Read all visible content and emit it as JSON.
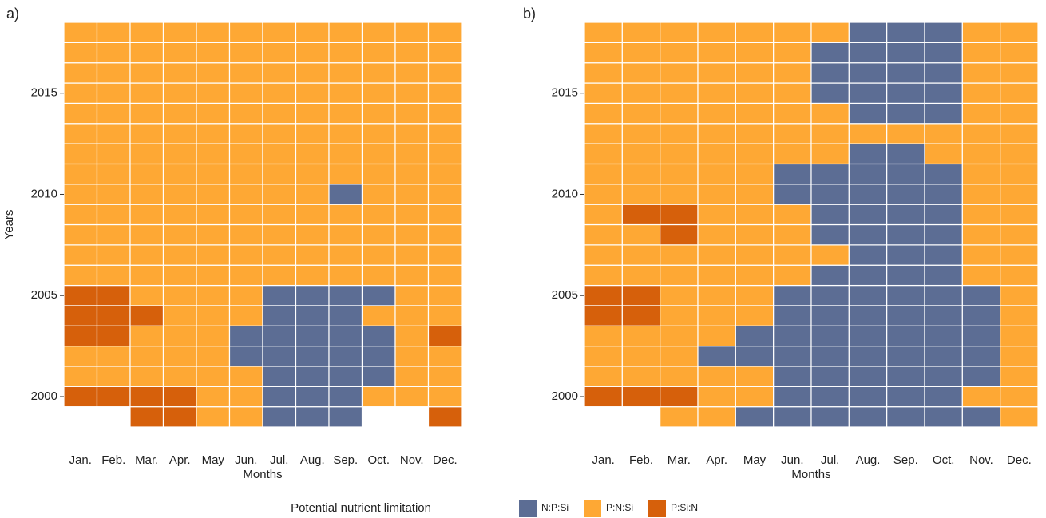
{
  "chart_data": [
    {
      "type": "heatmap",
      "panel_label": "a)",
      "x_label": "Months",
      "y_label": "Years",
      "categories": [
        "Jan.",
        "Feb.",
        "Mar.",
        "Apr.",
        "May",
        "Jun.",
        "Jul.",
        "Aug.",
        "Sep.",
        "Oct.",
        "Nov.",
        "Dec."
      ],
      "y": [
        1999,
        2000,
        2001,
        2002,
        2003,
        2004,
        2005,
        2006,
        2007,
        2008,
        2009,
        2010,
        2011,
        2012,
        2013,
        2014,
        2015,
        2016,
        2017,
        2018
      ],
      "ylim": [
        1998.5,
        2018.5
      ],
      "yticks": [
        2000,
        2005,
        2010,
        2015
      ],
      "values": [
        [
          null,
          null,
          "P:Si:N",
          "P:Si:N",
          "P:N:Si",
          "P:N:Si",
          "N:P:Si",
          "N:P:Si",
          "N:P:Si",
          null,
          null,
          "P:Si:N"
        ],
        [
          "P:Si:N",
          "P:Si:N",
          "P:Si:N",
          "P:Si:N",
          "P:N:Si",
          "P:N:Si",
          "N:P:Si",
          "N:P:Si",
          "N:P:Si",
          "P:N:Si",
          "P:N:Si",
          "P:N:Si"
        ],
        [
          "P:N:Si",
          "P:N:Si",
          "P:N:Si",
          "P:N:Si",
          "P:N:Si",
          "P:N:Si",
          "N:P:Si",
          "N:P:Si",
          "N:P:Si",
          "N:P:Si",
          "P:N:Si",
          "P:N:Si"
        ],
        [
          "P:N:Si",
          "P:N:Si",
          "P:N:Si",
          "P:N:Si",
          "P:N:Si",
          "N:P:Si",
          "N:P:Si",
          "N:P:Si",
          "N:P:Si",
          "N:P:Si",
          "P:N:Si",
          "P:N:Si"
        ],
        [
          "P:Si:N",
          "P:Si:N",
          "P:N:Si",
          "P:N:Si",
          "P:N:Si",
          "N:P:Si",
          "N:P:Si",
          "N:P:Si",
          "N:P:Si",
          "N:P:Si",
          "P:N:Si",
          "P:Si:N"
        ],
        [
          "P:Si:N",
          "P:Si:N",
          "P:Si:N",
          "P:N:Si",
          "P:N:Si",
          "P:N:Si",
          "N:P:Si",
          "N:P:Si",
          "N:P:Si",
          "P:N:Si",
          "P:N:Si",
          "P:N:Si"
        ],
        [
          "P:Si:N",
          "P:Si:N",
          "P:N:Si",
          "P:N:Si",
          "P:N:Si",
          "P:N:Si",
          "N:P:Si",
          "N:P:Si",
          "N:P:Si",
          "N:P:Si",
          "P:N:Si",
          "P:N:Si"
        ],
        [
          "P:N:Si",
          "P:N:Si",
          "P:N:Si",
          "P:N:Si",
          "P:N:Si",
          "P:N:Si",
          "P:N:Si",
          "P:N:Si",
          "P:N:Si",
          "P:N:Si",
          "P:N:Si",
          "P:N:Si"
        ],
        [
          "P:N:Si",
          "P:N:Si",
          "P:N:Si",
          "P:N:Si",
          "P:N:Si",
          "P:N:Si",
          "P:N:Si",
          "P:N:Si",
          "P:N:Si",
          "P:N:Si",
          "P:N:Si",
          "P:N:Si"
        ],
        [
          "P:N:Si",
          "P:N:Si",
          "P:N:Si",
          "P:N:Si",
          "P:N:Si",
          "P:N:Si",
          "P:N:Si",
          "P:N:Si",
          "P:N:Si",
          "P:N:Si",
          "P:N:Si",
          "P:N:Si"
        ],
        [
          "P:N:Si",
          "P:N:Si",
          "P:N:Si",
          "P:N:Si",
          "P:N:Si",
          "P:N:Si",
          "P:N:Si",
          "P:N:Si",
          "P:N:Si",
          "P:N:Si",
          "P:N:Si",
          "P:N:Si"
        ],
        [
          "P:N:Si",
          "P:N:Si",
          "P:N:Si",
          "P:N:Si",
          "P:N:Si",
          "P:N:Si",
          "P:N:Si",
          "P:N:Si",
          "N:P:Si",
          "P:N:Si",
          "P:N:Si",
          "P:N:Si"
        ],
        [
          "P:N:Si",
          "P:N:Si",
          "P:N:Si",
          "P:N:Si",
          "P:N:Si",
          "P:N:Si",
          "P:N:Si",
          "P:N:Si",
          "P:N:Si",
          "P:N:Si",
          "P:N:Si",
          "P:N:Si"
        ],
        [
          "P:N:Si",
          "P:N:Si",
          "P:N:Si",
          "P:N:Si",
          "P:N:Si",
          "P:N:Si",
          "P:N:Si",
          "P:N:Si",
          "P:N:Si",
          "P:N:Si",
          "P:N:Si",
          "P:N:Si"
        ],
        [
          "P:N:Si",
          "P:N:Si",
          "P:N:Si",
          "P:N:Si",
          "P:N:Si",
          "P:N:Si",
          "P:N:Si",
          "P:N:Si",
          "P:N:Si",
          "P:N:Si",
          "P:N:Si",
          "P:N:Si"
        ],
        [
          "P:N:Si",
          "P:N:Si",
          "P:N:Si",
          "P:N:Si",
          "P:N:Si",
          "P:N:Si",
          "P:N:Si",
          "P:N:Si",
          "P:N:Si",
          "P:N:Si",
          "P:N:Si",
          "P:N:Si"
        ],
        [
          "P:N:Si",
          "P:N:Si",
          "P:N:Si",
          "P:N:Si",
          "P:N:Si",
          "P:N:Si",
          "P:N:Si",
          "P:N:Si",
          "P:N:Si",
          "P:N:Si",
          "P:N:Si",
          "P:N:Si"
        ],
        [
          "P:N:Si",
          "P:N:Si",
          "P:N:Si",
          "P:N:Si",
          "P:N:Si",
          "P:N:Si",
          "P:N:Si",
          "P:N:Si",
          "P:N:Si",
          "P:N:Si",
          "P:N:Si",
          "P:N:Si"
        ],
        [
          "P:N:Si",
          "P:N:Si",
          "P:N:Si",
          "P:N:Si",
          "P:N:Si",
          "P:N:Si",
          "P:N:Si",
          "P:N:Si",
          "P:N:Si",
          "P:N:Si",
          "P:N:Si",
          "P:N:Si"
        ],
        [
          "P:N:Si",
          "P:N:Si",
          "P:N:Si",
          "P:N:Si",
          "P:N:Si",
          "P:N:Si",
          "P:N:Si",
          "P:N:Si",
          "P:N:Si",
          "P:N:Si",
          "P:N:Si",
          "P:N:Si"
        ]
      ]
    },
    {
      "type": "heatmap",
      "panel_label": "b)",
      "x_label": "Months",
      "categories": [
        "Jan.",
        "Feb.",
        "Mar.",
        "Apr.",
        "May",
        "Jun.",
        "Jul.",
        "Aug.",
        "Sep.",
        "Oct.",
        "Nov.",
        "Dec."
      ],
      "y": [
        1999,
        2000,
        2001,
        2002,
        2003,
        2004,
        2005,
        2006,
        2007,
        2008,
        2009,
        2010,
        2011,
        2012,
        2013,
        2014,
        2015,
        2016,
        2017,
        2018
      ],
      "ylim": [
        1998.5,
        2018.5
      ],
      "yticks": [
        2000,
        2005,
        2010,
        2015
      ],
      "values": [
        [
          null,
          null,
          "P:N:Si",
          "P:N:Si",
          "N:P:Si",
          "N:P:Si",
          "N:P:Si",
          "N:P:Si",
          "N:P:Si",
          "N:P:Si",
          "N:P:Si",
          "P:N:Si"
        ],
        [
          "P:Si:N",
          "P:Si:N",
          "P:Si:N",
          "P:N:Si",
          "P:N:Si",
          "N:P:Si",
          "N:P:Si",
          "N:P:Si",
          "N:P:Si",
          "N:P:Si",
          "P:N:Si",
          "P:N:Si"
        ],
        [
          "P:N:Si",
          "P:N:Si",
          "P:N:Si",
          "P:N:Si",
          "P:N:Si",
          "N:P:Si",
          "N:P:Si",
          "N:P:Si",
          "N:P:Si",
          "N:P:Si",
          "N:P:Si",
          "P:N:Si"
        ],
        [
          "P:N:Si",
          "P:N:Si",
          "P:N:Si",
          "N:P:Si",
          "N:P:Si",
          "N:P:Si",
          "N:P:Si",
          "N:P:Si",
          "N:P:Si",
          "N:P:Si",
          "N:P:Si",
          "P:N:Si"
        ],
        [
          "P:N:Si",
          "P:N:Si",
          "P:N:Si",
          "P:N:Si",
          "N:P:Si",
          "N:P:Si",
          "N:P:Si",
          "N:P:Si",
          "N:P:Si",
          "N:P:Si",
          "N:P:Si",
          "P:N:Si"
        ],
        [
          "P:Si:N",
          "P:Si:N",
          "P:N:Si",
          "P:N:Si",
          "P:N:Si",
          "N:P:Si",
          "N:P:Si",
          "N:P:Si",
          "N:P:Si",
          "N:P:Si",
          "N:P:Si",
          "P:N:Si"
        ],
        [
          "P:Si:N",
          "P:Si:N",
          "P:N:Si",
          "P:N:Si",
          "P:N:Si",
          "N:P:Si",
          "N:P:Si",
          "N:P:Si",
          "N:P:Si",
          "N:P:Si",
          "N:P:Si",
          "P:N:Si"
        ],
        [
          "P:N:Si",
          "P:N:Si",
          "P:N:Si",
          "P:N:Si",
          "P:N:Si",
          "P:N:Si",
          "N:P:Si",
          "N:P:Si",
          "N:P:Si",
          "N:P:Si",
          "P:N:Si",
          "P:N:Si"
        ],
        [
          "P:N:Si",
          "P:N:Si",
          "P:N:Si",
          "P:N:Si",
          "P:N:Si",
          "P:N:Si",
          "P:N:Si",
          "N:P:Si",
          "N:P:Si",
          "N:P:Si",
          "P:N:Si",
          "P:N:Si"
        ],
        [
          "P:N:Si",
          "P:N:Si",
          "P:Si:N",
          "P:N:Si",
          "P:N:Si",
          "P:N:Si",
          "N:P:Si",
          "N:P:Si",
          "N:P:Si",
          "N:P:Si",
          "P:N:Si",
          "P:N:Si"
        ],
        [
          "P:N:Si",
          "P:Si:N",
          "P:Si:N",
          "P:N:Si",
          "P:N:Si",
          "P:N:Si",
          "N:P:Si",
          "N:P:Si",
          "N:P:Si",
          "N:P:Si",
          "P:N:Si",
          "P:N:Si"
        ],
        [
          "P:N:Si",
          "P:N:Si",
          "P:N:Si",
          "P:N:Si",
          "P:N:Si",
          "N:P:Si",
          "N:P:Si",
          "N:P:Si",
          "N:P:Si",
          "N:P:Si",
          "P:N:Si",
          "P:N:Si"
        ],
        [
          "P:N:Si",
          "P:N:Si",
          "P:N:Si",
          "P:N:Si",
          "P:N:Si",
          "N:P:Si",
          "N:P:Si",
          "N:P:Si",
          "N:P:Si",
          "N:P:Si",
          "P:N:Si",
          "P:N:Si"
        ],
        [
          "P:N:Si",
          "P:N:Si",
          "P:N:Si",
          "P:N:Si",
          "P:N:Si",
          "P:N:Si",
          "P:N:Si",
          "N:P:Si",
          "N:P:Si",
          "P:N:Si",
          "P:N:Si",
          "P:N:Si"
        ],
        [
          "P:N:Si",
          "P:N:Si",
          "P:N:Si",
          "P:N:Si",
          "P:N:Si",
          "P:N:Si",
          "P:N:Si",
          "P:N:Si",
          "P:N:Si",
          "P:N:Si",
          "P:N:Si",
          "P:N:Si"
        ],
        [
          "P:N:Si",
          "P:N:Si",
          "P:N:Si",
          "P:N:Si",
          "P:N:Si",
          "P:N:Si",
          "P:N:Si",
          "N:P:Si",
          "N:P:Si",
          "N:P:Si",
          "P:N:Si",
          "P:N:Si"
        ],
        [
          "P:N:Si",
          "P:N:Si",
          "P:N:Si",
          "P:N:Si",
          "P:N:Si",
          "P:N:Si",
          "N:P:Si",
          "N:P:Si",
          "N:P:Si",
          "N:P:Si",
          "P:N:Si",
          "P:N:Si"
        ],
        [
          "P:N:Si",
          "P:N:Si",
          "P:N:Si",
          "P:N:Si",
          "P:N:Si",
          "P:N:Si",
          "N:P:Si",
          "N:P:Si",
          "N:P:Si",
          "N:P:Si",
          "P:N:Si",
          "P:N:Si"
        ],
        [
          "P:N:Si",
          "P:N:Si",
          "P:N:Si",
          "P:N:Si",
          "P:N:Si",
          "P:N:Si",
          "N:P:Si",
          "N:P:Si",
          "N:P:Si",
          "N:P:Si",
          "P:N:Si",
          "P:N:Si"
        ],
        [
          "P:N:Si",
          "P:N:Si",
          "P:N:Si",
          "P:N:Si",
          "P:N:Si",
          "P:N:Si",
          "P:N:Si",
          "N:P:Si",
          "N:P:Si",
          "N:P:Si",
          "P:N:Si",
          "P:N:Si"
        ]
      ]
    }
  ],
  "legend": {
    "title": "Potential nutrient limitation",
    "items": [
      {
        "name": "N:P:Si",
        "color": "#5c6d94"
      },
      {
        "name": "P:N:Si",
        "color": "#fea834"
      },
      {
        "name": "P:Si:N",
        "color": "#d6600b"
      }
    ]
  }
}
